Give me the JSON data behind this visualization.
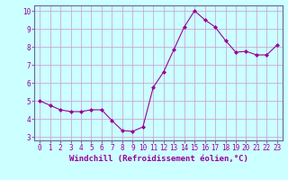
{
  "x": [
    0,
    1,
    2,
    3,
    4,
    5,
    6,
    7,
    8,
    9,
    10,
    11,
    12,
    13,
    14,
    15,
    16,
    17,
    18,
    19,
    20,
    21,
    22,
    23
  ],
  "y": [
    5.0,
    4.75,
    4.5,
    4.4,
    4.4,
    4.5,
    4.5,
    3.9,
    3.35,
    3.3,
    3.55,
    5.75,
    6.6,
    7.85,
    9.1,
    10.0,
    9.5,
    9.1,
    8.35,
    7.7,
    7.75,
    7.55,
    7.55,
    8.1
  ],
  "line_color": "#990099",
  "marker": "D",
  "markersize": 2.0,
  "linewidth": 0.8,
  "bg_color": "#ccffff",
  "grid_color": "#cc99cc",
  "xlabel": "Windchill (Refroidissement éolien,°C)",
  "xlabel_color": "#990099",
  "xlabel_fontsize": 6.5,
  "ylim_min": 2.8,
  "ylim_max": 10.3,
  "xlim_min": -0.5,
  "xlim_max": 23.5,
  "xticks": [
    0,
    1,
    2,
    3,
    4,
    5,
    6,
    7,
    8,
    9,
    10,
    11,
    12,
    13,
    14,
    15,
    16,
    17,
    18,
    19,
    20,
    21,
    22,
    23
  ],
  "yticks": [
    3,
    4,
    5,
    6,
    7,
    8,
    9,
    10
  ],
  "tick_fontsize": 5.5,
  "tick_color": "#990099",
  "spine_color": "#666699"
}
